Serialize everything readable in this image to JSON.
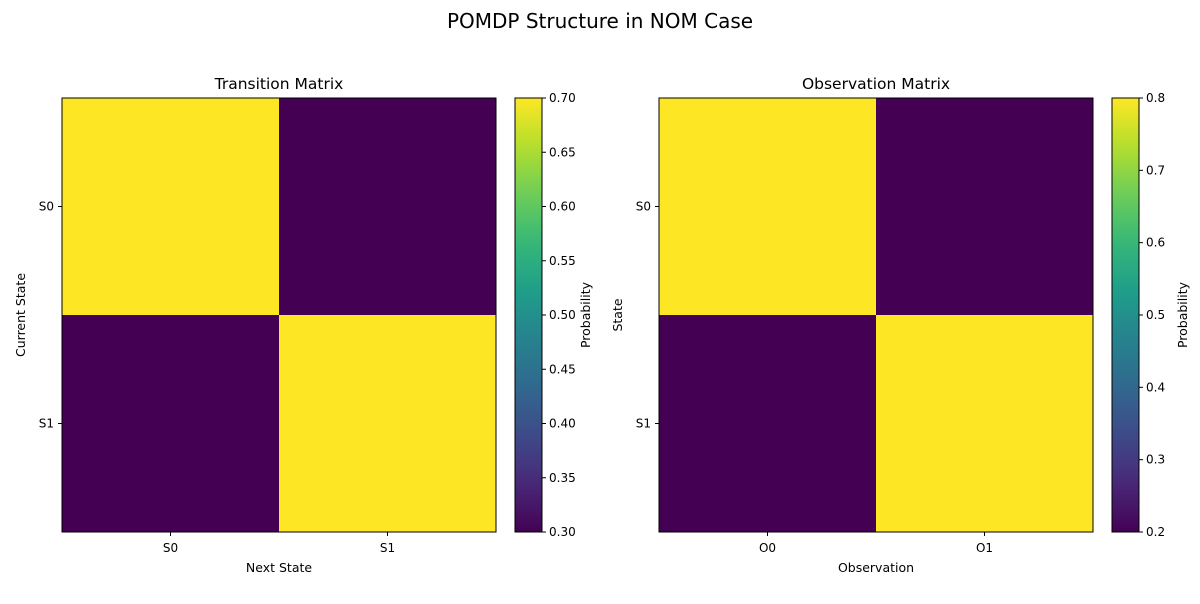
{
  "figure": {
    "title": "POMDP Structure in NOM Case"
  },
  "chart_data": [
    {
      "type": "heatmap",
      "title": "Transition Matrix",
      "xlabel": "Next State",
      "ylabel": "Current State",
      "x_categories": [
        "S0",
        "S1"
      ],
      "y_categories": [
        "S0",
        "S1"
      ],
      "values": [
        [
          0.7,
          0.3
        ],
        [
          0.3,
          0.7
        ]
      ],
      "colorbar": {
        "label": "Probability",
        "range": [
          0.3,
          0.7
        ],
        "ticks": [
          "0.30",
          "0.35",
          "0.40",
          "0.45",
          "0.50",
          "0.55",
          "0.60",
          "0.65",
          "0.70"
        ]
      },
      "colormap": "viridis",
      "grid": false
    },
    {
      "type": "heatmap",
      "title": "Observation Matrix",
      "xlabel": "Observation",
      "ylabel": "State",
      "x_categories": [
        "O0",
        "O1"
      ],
      "y_categories": [
        "S0",
        "S1"
      ],
      "values": [
        [
          0.8,
          0.2
        ],
        [
          0.2,
          0.8
        ]
      ],
      "colorbar": {
        "label": "Probability",
        "range": [
          0.2,
          0.8
        ],
        "ticks": [
          "0.2",
          "0.3",
          "0.4",
          "0.5",
          "0.6",
          "0.7",
          "0.8"
        ]
      },
      "colormap": "viridis",
      "grid": false
    }
  ]
}
